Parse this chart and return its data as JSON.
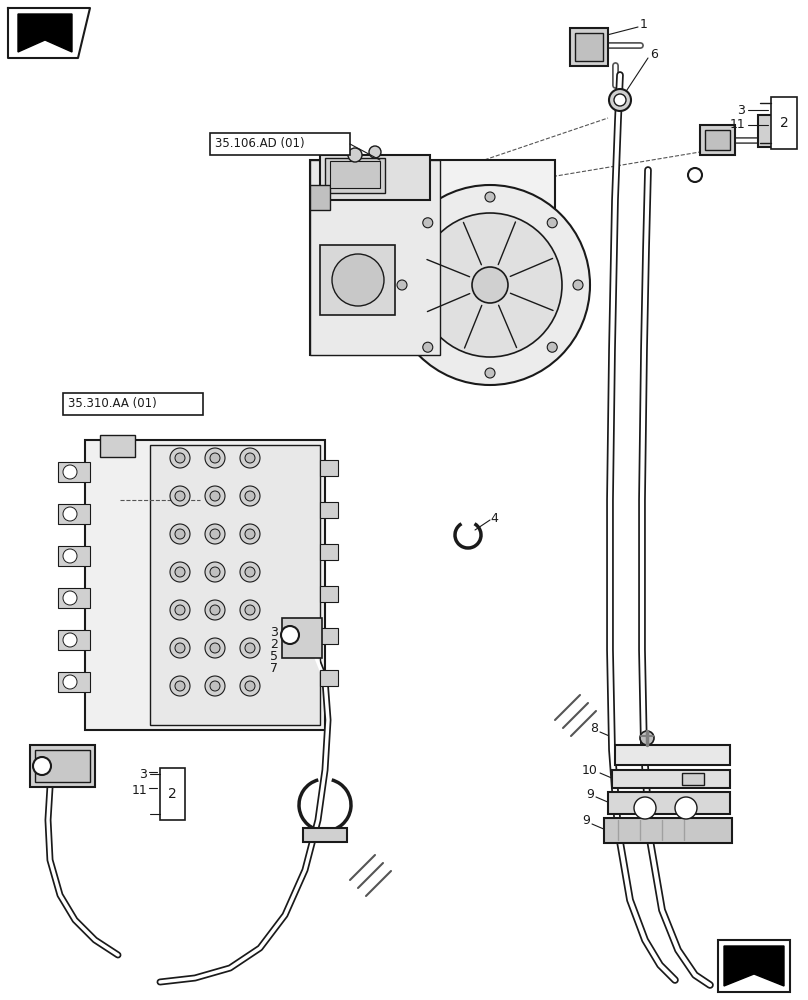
{
  "bg_color": "#ffffff",
  "line_color": "#1a1a1a",
  "figsize": [
    8.08,
    10.0
  ],
  "dpi": 100,
  "pump_label": "35.106.AD (01)",
  "valve_label": "35.310.AA (01)"
}
